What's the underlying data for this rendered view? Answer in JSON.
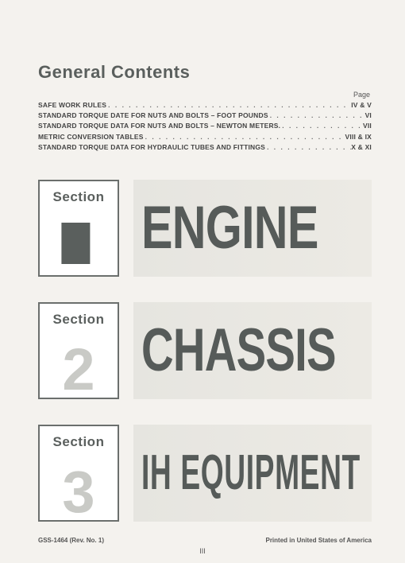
{
  "heading": "General Contents",
  "page_label": "Page",
  "toc": [
    {
      "label": "SAFE WORK RULES",
      "page": "IV & V"
    },
    {
      "label": "STANDARD TORQUE DATE FOR NUTS AND BOLTS – FOOT POUNDS",
      "page": "VI"
    },
    {
      "label": "STANDARD TORQUE DATA FOR NUTS AND BOLTS – NEWTON METERS.",
      "page": "VII"
    },
    {
      "label": "METRIC CONVERSION TABLES",
      "page": "VIII & IX"
    },
    {
      "label": "STANDARD TORQUE DATA FOR HYDRAULIC TUBES AND FITTINGS",
      "page": "X & XI"
    }
  ],
  "sections": [
    {
      "word": "Section",
      "num": "1",
      "title": "ENGINE"
    },
    {
      "word": "Section",
      "num": "2",
      "title": "CHASSIS"
    },
    {
      "word": "Section",
      "num": "3",
      "title": "IH EQUIPMENT"
    }
  ],
  "footer_left": "GSS-1464 (Rev. No. 1)",
  "footer_right": "Printed in United States of America",
  "page_number": "III",
  "dots": ". . . . . . . . . . . . . . . . . . . . . . . . . . . . . . . . . . . . . . . . . . . . . . . . . . . . . . . . . . . . . . . . . . . . . . . . . . . . . . . . . ."
}
